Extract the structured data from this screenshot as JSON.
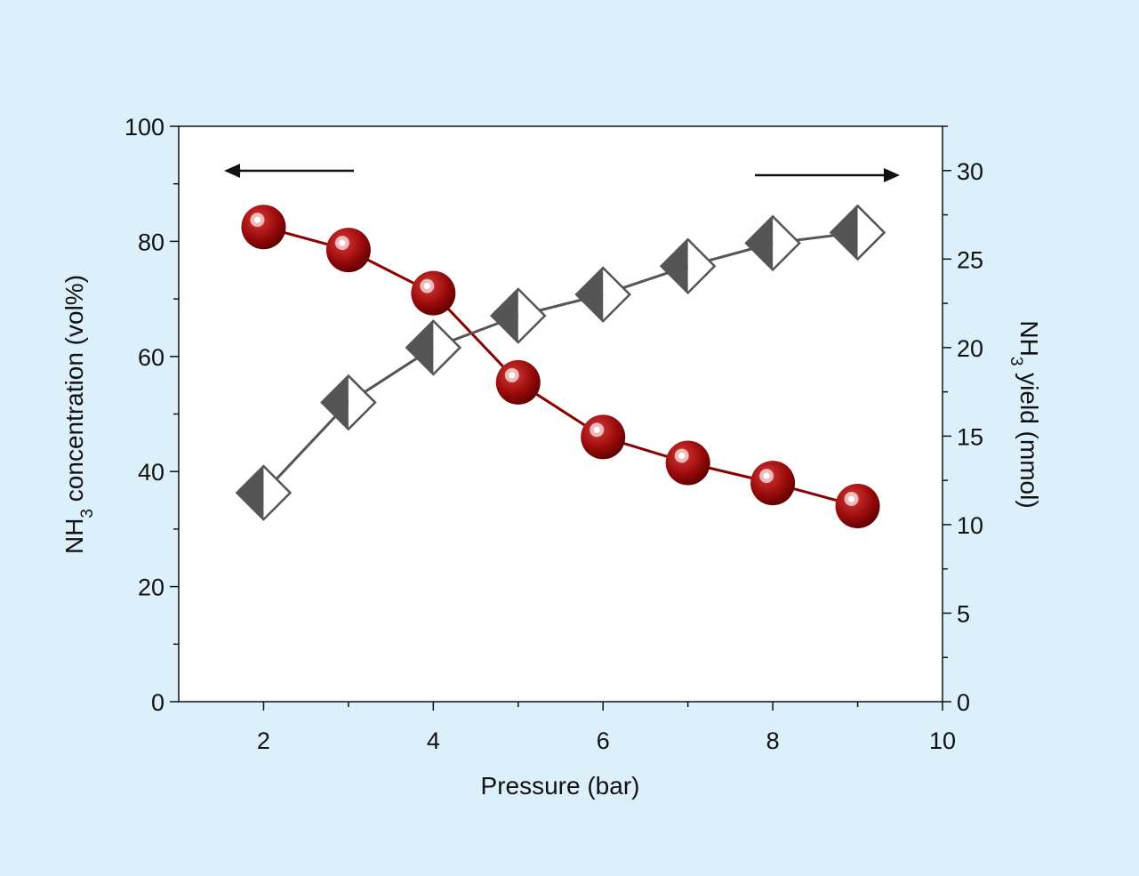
{
  "chart_data": {
    "type": "line",
    "xlabel": "Pressure (bar)",
    "ylabel_left": {
      "prefix": "NH",
      "sub": "3",
      "suffix": " concentration (vol%)"
    },
    "ylabel_right": {
      "prefix": "NH",
      "sub": "3",
      "suffix": " yield (mmol)"
    },
    "xlim": [
      1,
      10
    ],
    "ylim_left": [
      0,
      100
    ],
    "ylim_right": [
      0,
      32.5
    ],
    "x_ticks": [
      2,
      4,
      6,
      8,
      10
    ],
    "y_left_ticks": [
      0,
      20,
      40,
      60,
      80,
      100
    ],
    "y_right_ticks": [
      0,
      5,
      10,
      15,
      20,
      25,
      30
    ],
    "grid": false,
    "arrows": [
      {
        "points_to": "left",
        "axis": "left"
      },
      {
        "points_to": "right",
        "axis": "right"
      }
    ],
    "series": [
      {
        "axis": "left",
        "marker": "sphere",
        "color": "#8b0000",
        "x": [
          2,
          3,
          4,
          5,
          6,
          7,
          8,
          9
        ],
        "values": [
          82.5,
          78.5,
          71,
          55.5,
          46,
          41.5,
          38,
          34
        ]
      },
      {
        "axis": "right",
        "marker": "half-filled-diamond",
        "color": "#555555",
        "x": [
          2,
          3,
          4,
          5,
          6,
          7,
          8,
          9
        ],
        "values": [
          11.8,
          16.9,
          20,
          21.8,
          23,
          24.6,
          25.9,
          26.5
        ]
      }
    ]
  }
}
